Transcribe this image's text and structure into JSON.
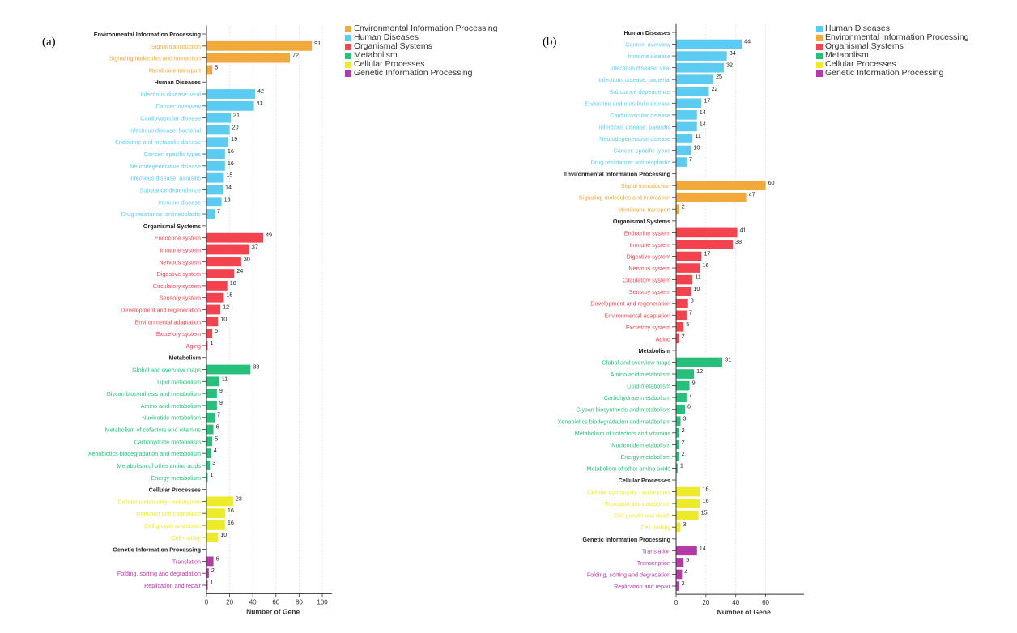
{
  "colors": {
    "Environmental Information Processing": "#F2A93B",
    "Human Diseases": "#5CCBF2",
    "Organismal Systems": "#F2434F",
    "Metabolism": "#27C07A",
    "Cellular Processes": "#EDEA2A",
    "Genetic Information Processing": "#B43AA5"
  },
  "chart_data": [
    {
      "panel": "(a)",
      "type": "bar",
      "orientation": "horizontal",
      "xlabel": "Number of Gene",
      "xlim": [
        0,
        100
      ],
      "xticks": [
        "0",
        "20",
        "40",
        "60",
        "80",
        "100"
      ],
      "legend": [
        "Environmental Information Processing",
        "Human Diseases",
        "Organismal Systems",
        "Metabolism",
        "Cellular Processes",
        "Genetic Information Processing"
      ],
      "groups": [
        {
          "name": "Environmental Information Processing",
          "items": [
            {
              "label": "Signal transduction",
              "value": 91
            },
            {
              "label": "Signaling molecules and interaction",
              "value": 72
            },
            {
              "label": "Membrane transport",
              "value": 5
            }
          ]
        },
        {
          "name": "Human Diseases",
          "items": [
            {
              "label": "Infectious disease: viral",
              "value": 42
            },
            {
              "label": "Cancer: overview",
              "value": 41
            },
            {
              "label": "Cardiovascular disease",
              "value": 21
            },
            {
              "label": "Infectious disease: bacterial",
              "value": 20
            },
            {
              "label": "Endocrine and metabolic disease",
              "value": 19
            },
            {
              "label": "Cancer: specific types",
              "value": 16
            },
            {
              "label": "Neurodegenerative disease",
              "value": 16
            },
            {
              "label": "Infectious disease: parasitic",
              "value": 15
            },
            {
              "label": "Substance dependence",
              "value": 14
            },
            {
              "label": "Immune disease",
              "value": 13
            },
            {
              "label": "Drug resistance: antineoplastic",
              "value": 7
            }
          ]
        },
        {
          "name": "Organismal Systems",
          "items": [
            {
              "label": "Endocrine system",
              "value": 49
            },
            {
              "label": "Immune system",
              "value": 37
            },
            {
              "label": "Nervous system",
              "value": 30
            },
            {
              "label": "Digestive system",
              "value": 24
            },
            {
              "label": "Circulatory system",
              "value": 18
            },
            {
              "label": "Sensory system",
              "value": 15
            },
            {
              "label": "Development and regeneration",
              "value": 12
            },
            {
              "label": "Environmental adaptation",
              "value": 10
            },
            {
              "label": "Excretory system",
              "value": 5
            },
            {
              "label": "Aging",
              "value": 1
            }
          ]
        },
        {
          "name": "Metabolism",
          "items": [
            {
              "label": "Global and overview maps",
              "value": 38
            },
            {
              "label": "Lipid metabolism",
              "value": 11
            },
            {
              "label": "Glycan biosynthesis and metabolism",
              "value": 9
            },
            {
              "label": "Amino acid metabolism",
              "value": 9
            },
            {
              "label": "Nucleotide metabolism",
              "value": 7
            },
            {
              "label": "Metabolism of cofactors and vitamins",
              "value": 6
            },
            {
              "label": "Carbohydrate metabolism",
              "value": 5
            },
            {
              "label": "Xenobiotics biodegradation and metabolism",
              "value": 4
            },
            {
              "label": "Metabolism of other amino acids",
              "value": 3
            },
            {
              "label": "Energy metabolism",
              "value": 1
            }
          ]
        },
        {
          "name": "Cellular Processes",
          "items": [
            {
              "label": "Cellular community - eukaryotes",
              "value": 23
            },
            {
              "label": "Transport and catabolism",
              "value": 16
            },
            {
              "label": "Cell growth and death",
              "value": 16
            },
            {
              "label": "Cell motility",
              "value": 10
            }
          ]
        },
        {
          "name": "Genetic Information Processing",
          "items": [
            {
              "label": "Translation",
              "value": 6
            },
            {
              "label": "Folding, sorting and degradation",
              "value": 2
            },
            {
              "label": "Replication and repair",
              "value": 1
            }
          ]
        }
      ]
    },
    {
      "panel": "(b)",
      "type": "bar",
      "orientation": "horizontal",
      "xlabel": "Number of Gene",
      "xlim": [
        0,
        70
      ],
      "xticks": [
        "0",
        "20",
        "40",
        "60"
      ],
      "legend": [
        "Human Diseases",
        "Environmental Information Processing",
        "Organismal Systems",
        "Metabolism",
        "Cellular Processes",
        "Genetic Information Processing"
      ],
      "groups": [
        {
          "name": "Human Diseases",
          "items": [
            {
              "label": "Cancer: overview",
              "value": 44
            },
            {
              "label": "Immune disease",
              "value": 34
            },
            {
              "label": "Infectious disease: viral",
              "value": 32
            },
            {
              "label": "Infectious disease: bacterial",
              "value": 25
            },
            {
              "label": "Substance dependence",
              "value": 22
            },
            {
              "label": "Endocrine and metabolic disease",
              "value": 17
            },
            {
              "label": "Cardiovascular disease",
              "value": 14
            },
            {
              "label": "Infectious disease: parasitic",
              "value": 14
            },
            {
              "label": "Neurodegenerative disease",
              "value": 11
            },
            {
              "label": "Cancer: specific types",
              "value": 10
            },
            {
              "label": "Drug resistance: antineoplastic",
              "value": 7
            }
          ]
        },
        {
          "name": "Environmental Information Processing",
          "items": [
            {
              "label": "Signal transduction",
              "value": 60
            },
            {
              "label": "Signaling molecules and interaction",
              "value": 47
            },
            {
              "label": "Membrane transport",
              "value": 2
            }
          ]
        },
        {
          "name": "Organismal Systems",
          "items": [
            {
              "label": "Endocrine system",
              "value": 41
            },
            {
              "label": "Immune system",
              "value": 38
            },
            {
              "label": "Digestive system",
              "value": 17
            },
            {
              "label": "Nervous system",
              "value": 16
            },
            {
              "label": "Circulatory system",
              "value": 11
            },
            {
              "label": "Sensory system",
              "value": 10
            },
            {
              "label": "Development and regeneration",
              "value": 8
            },
            {
              "label": "Environmental adaptation",
              "value": 7
            },
            {
              "label": "Excretory system",
              "value": 5
            },
            {
              "label": "Aging",
              "value": 2
            }
          ]
        },
        {
          "name": "Metabolism",
          "items": [
            {
              "label": "Global and overview maps",
              "value": 31
            },
            {
              "label": "Amino acid metabolism",
              "value": 12
            },
            {
              "label": "Lipid metabolism",
              "value": 9
            },
            {
              "label": "Carbohydrate metabolism",
              "value": 7
            },
            {
              "label": "Glycan biosynthesis and metabolism",
              "value": 6
            },
            {
              "label": "Xenobiotics biodegradation and metabolism",
              "value": 3
            },
            {
              "label": "Metabolism of cofactors and vitamins",
              "value": 2
            },
            {
              "label": "Nucleotide metabolism",
              "value": 2
            },
            {
              "label": "Energy metabolism",
              "value": 2
            },
            {
              "label": "Metabolism of other amino acids",
              "value": 1
            }
          ]
        },
        {
          "name": "Cellular Processes",
          "items": [
            {
              "label": "Cellular community - eukaryotes",
              "value": 16
            },
            {
              "label": "Transport and catabolism",
              "value": 16
            },
            {
              "label": "Cell growth and death",
              "value": 15
            },
            {
              "label": "Cell motility",
              "value": 3
            }
          ]
        },
        {
          "name": "Genetic Information Processing",
          "items": [
            {
              "label": "Translation",
              "value": 14
            },
            {
              "label": "Transcription",
              "value": 5
            },
            {
              "label": "Folding, sorting and degradation",
              "value": 4
            },
            {
              "label": "Replication and repair",
              "value": 2
            }
          ]
        }
      ]
    }
  ]
}
